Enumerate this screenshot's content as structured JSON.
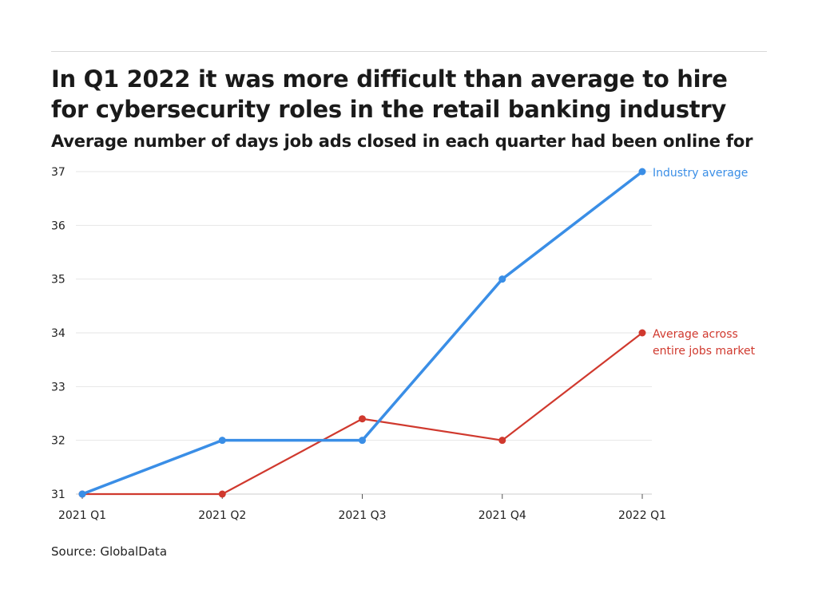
{
  "chart_data": {
    "type": "line",
    "title": "In Q1 2022 it was more difficult than average to hire for cybersecurity roles in the retail banking industry",
    "subtitle": "Average number of days job ads closed in each quarter had been online for",
    "xlabel": "",
    "ylabel": "",
    "categories": [
      "2021 Q1",
      "2021 Q2",
      "2021 Q3",
      "2021 Q4",
      "2022 Q1"
    ],
    "yticks": [
      31,
      32,
      33,
      34,
      35,
      36,
      37
    ],
    "ylim": [
      31,
      37
    ],
    "grid": true,
    "legend": "direct labels at line ends (right)",
    "series": [
      {
        "name": "Industry average",
        "color": "#3a8ee6",
        "values": [
          31,
          32,
          32,
          35,
          37
        ],
        "label_lines": [
          "Industry average"
        ]
      },
      {
        "name": "Average across entire jobs market",
        "color": "#d0392e",
        "values": [
          31,
          31,
          32.4,
          32,
          34
        ],
        "label_lines": [
          "Average across",
          "entire jobs market"
        ]
      }
    ],
    "source": "Source: GlobalData"
  }
}
